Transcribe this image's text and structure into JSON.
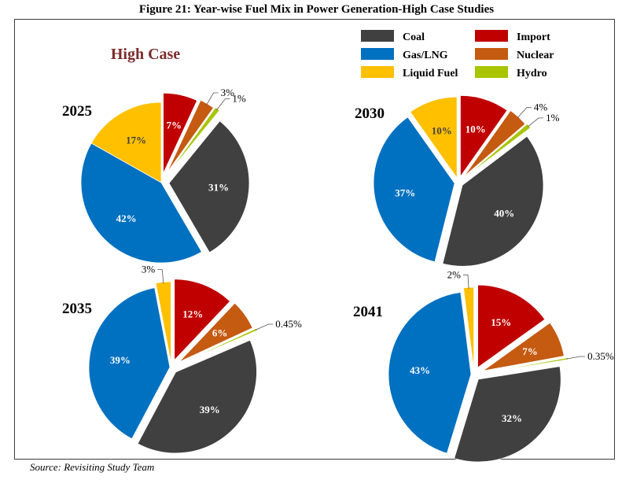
{
  "figure_title": "Figure 21: Year-wise Fuel Mix in Power Generation-High Case Studies",
  "case_label": "High Case",
  "source": "Source: Revisiting Study Team",
  "colors": {
    "Coal": "#404040",
    "Gas/LNG": "#0070c0",
    "Liquid Fuel": "#ffc000",
    "Import": "#c00000",
    "Nuclear": "#c55a11",
    "Hydro": "#a9c400",
    "case_label": "#7b2c2c"
  },
  "legend": [
    "Coal",
    "Gas/LNG",
    "Liquid Fuel",
    "Import",
    "Nuclear",
    "Hydro"
  ],
  "chart_data": [
    {
      "type": "pie",
      "title": "2025",
      "categories": [
        "Import",
        "Nuclear",
        "Hydro",
        "Coal",
        "Gas/LNG",
        "Liquid Fuel"
      ],
      "values": [
        7,
        3,
        1,
        31,
        42,
        17
      ],
      "labels": [
        "7%",
        "3%",
        "1%",
        "31%",
        "42%",
        "17%"
      ]
    },
    {
      "type": "pie",
      "title": "2030",
      "categories": [
        "Import",
        "Nuclear",
        "Hydro",
        "Coal",
        "Gas/LNG",
        "Liquid Fuel"
      ],
      "values": [
        10,
        4,
        1,
        40,
        37,
        10
      ],
      "labels": [
        "10%",
        "4%",
        "1%",
        "40%",
        "37%",
        "10%"
      ]
    },
    {
      "type": "pie",
      "title": "2035",
      "categories": [
        "Import",
        "Nuclear",
        "Hydro",
        "Coal",
        "Gas/LNG",
        "Liquid Fuel"
      ],
      "values": [
        12,
        6,
        0.45,
        39,
        39,
        3
      ],
      "labels": [
        "12%",
        "6%",
        "0.45%",
        "39%",
        "39%",
        "3%"
      ]
    },
    {
      "type": "pie",
      "title": "2041",
      "categories": [
        "Import",
        "Nuclear",
        "Hydro",
        "Coal",
        "Gas/LNG",
        "Liquid Fuel"
      ],
      "values": [
        15,
        7,
        0.35,
        32,
        43,
        2
      ],
      "labels": [
        "15%",
        "7%",
        "0.35%",
        "32%",
        "43%",
        "2%"
      ]
    }
  ]
}
